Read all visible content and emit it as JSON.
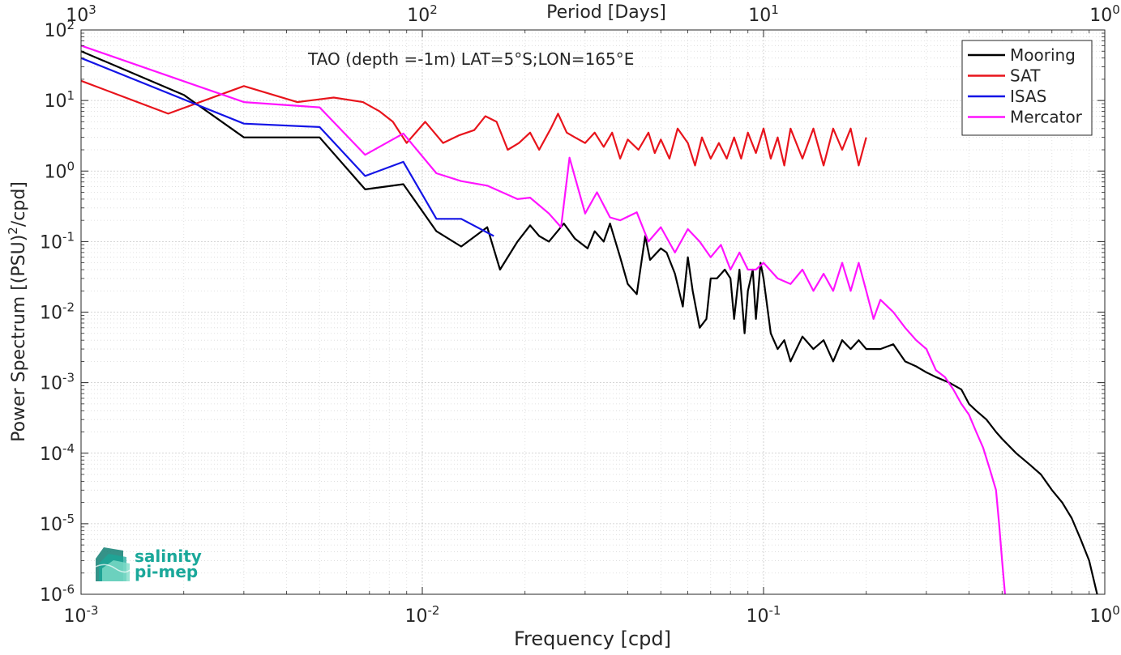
{
  "chart_data": {
    "type": "line",
    "title": "TAO (depth =-1m) LAT=5°S;LON=165°E",
    "xlabel": "Frequency [cpd]",
    "ylabel": "Power Spectrum [(PSU)²/cpd]",
    "ylabel_main": "Power Spectrum [(PSU)",
    "ylabel_sup": "2",
    "ylabel_tail": "/cpd]",
    "top_xlabel": "Period [Days]",
    "xscale": "log",
    "yscale": "log",
    "xlim": [
      0.001,
      1
    ],
    "ylim": [
      1e-06,
      100
    ],
    "grid": true,
    "legend_position": "top-right",
    "x_ticks": [
      {
        "value": 0.001,
        "base": "10",
        "exp": "-3"
      },
      {
        "value": 0.01,
        "base": "10",
        "exp": "-2"
      },
      {
        "value": 0.1,
        "base": "10",
        "exp": "-1"
      },
      {
        "value": 1,
        "base": "10",
        "exp": "0"
      }
    ],
    "top_ticks": [
      {
        "value": 1000,
        "base": "10",
        "exp": "3"
      },
      {
        "value": 100,
        "base": "10",
        "exp": "2"
      },
      {
        "value": 10,
        "base": "10",
        "exp": "1"
      },
      {
        "value": 1,
        "base": "10",
        "exp": "0"
      }
    ],
    "y_ticks": [
      {
        "value": 100,
        "base": "10",
        "exp": "2"
      },
      {
        "value": 10,
        "base": "10",
        "exp": "1"
      },
      {
        "value": 1,
        "base": "10",
        "exp": "0"
      },
      {
        "value": 0.1,
        "base": "10",
        "exp": "-1"
      },
      {
        "value": 0.01,
        "base": "10",
        "exp": "-2"
      },
      {
        "value": 0.001,
        "base": "10",
        "exp": "-3"
      },
      {
        "value": 0.0001,
        "base": "10",
        "exp": "-4"
      },
      {
        "value": 1e-05,
        "base": "10",
        "exp": "-5"
      },
      {
        "value": 1e-06,
        "base": "10",
        "exp": "-6"
      }
    ],
    "series": [
      {
        "name": "Mooring",
        "color": "#000000",
        "x": [
          0.001,
          0.002,
          0.003,
          0.005,
          0.0068,
          0.0088,
          0.011,
          0.013,
          0.0155,
          0.0169,
          0.019,
          0.0207,
          0.022,
          0.0235,
          0.026,
          0.028,
          0.0305,
          0.032,
          0.034,
          0.0355,
          0.038,
          0.04,
          0.0425,
          0.045,
          0.0465,
          0.05,
          0.052,
          0.055,
          0.058,
          0.06,
          0.062,
          0.065,
          0.068,
          0.07,
          0.073,
          0.077,
          0.08,
          0.082,
          0.085,
          0.088,
          0.09,
          0.093,
          0.095,
          0.098,
          0.1,
          0.105,
          0.11,
          0.115,
          0.12,
          0.13,
          0.14,
          0.15,
          0.16,
          0.17,
          0.18,
          0.19,
          0.2,
          0.22,
          0.24,
          0.26,
          0.28,
          0.3,
          0.32,
          0.35,
          0.38,
          0.4,
          0.42,
          0.45,
          0.48,
          0.5,
          0.55,
          0.6,
          0.65,
          0.7,
          0.75,
          0.8,
          0.85,
          0.9,
          0.95
        ],
        "y": [
          50,
          12,
          3,
          3,
          0.55,
          0.65,
          0.14,
          0.085,
          0.16,
          0.04,
          0.1,
          0.17,
          0.12,
          0.1,
          0.18,
          0.11,
          0.08,
          0.14,
          0.1,
          0.18,
          0.06,
          0.025,
          0.018,
          0.12,
          0.055,
          0.08,
          0.07,
          0.035,
          0.012,
          0.06,
          0.02,
          0.006,
          0.008,
          0.03,
          0.03,
          0.04,
          0.03,
          0.008,
          0.04,
          0.005,
          0.02,
          0.04,
          0.008,
          0.05,
          0.03,
          0.005,
          0.003,
          0.004,
          0.002,
          0.0045,
          0.003,
          0.004,
          0.002,
          0.004,
          0.003,
          0.004,
          0.003,
          0.003,
          0.0035,
          0.002,
          0.0017,
          0.0014,
          0.0012,
          0.001,
          0.0008,
          0.0005,
          0.0004,
          0.0003,
          0.0002,
          0.00016,
          0.0001,
          7e-05,
          5e-05,
          3e-05,
          2e-05,
          1.2e-05,
          6e-06,
          3e-06,
          1e-06
        ]
      },
      {
        "name": "SAT",
        "color": "#e8141c",
        "x": [
          0.001,
          0.0018,
          0.003,
          0.0043,
          0.0055,
          0.0067,
          0.0075,
          0.0082,
          0.009,
          0.0102,
          0.0115,
          0.0128,
          0.0142,
          0.0153,
          0.0165,
          0.0178,
          0.0192,
          0.0207,
          0.022,
          0.0238,
          0.025,
          0.0265,
          0.028,
          0.03,
          0.032,
          0.034,
          0.036,
          0.038,
          0.04,
          0.043,
          0.046,
          0.048,
          0.05,
          0.053,
          0.056,
          0.06,
          0.063,
          0.066,
          0.07,
          0.074,
          0.078,
          0.082,
          0.086,
          0.09,
          0.095,
          0.1,
          0.105,
          0.11,
          0.115,
          0.12,
          0.13,
          0.14,
          0.15,
          0.16,
          0.17,
          0.18,
          0.19,
          0.2
        ],
        "y": [
          19,
          6.5,
          16,
          9.5,
          11,
          9.5,
          7,
          5,
          2.5,
          5,
          2.5,
          3.2,
          3.8,
          6,
          5,
          2,
          2.5,
          3.5,
          2,
          4,
          6.5,
          3.5,
          3,
          2.5,
          3.5,
          2.2,
          3.5,
          1.5,
          2.8,
          2,
          3.5,
          1.8,
          2.8,
          1.5,
          4,
          2.5,
          1.2,
          3,
          1.5,
          2.5,
          1.5,
          3,
          1.5,
          3.5,
          1.8,
          4,
          1.5,
          3,
          1.2,
          4,
          1.5,
          4,
          1.2,
          4,
          2,
          4,
          1.2,
          3
        ]
      },
      {
        "name": "ISAS",
        "color": "#1414e6",
        "x": [
          0.001,
          0.003,
          0.005,
          0.0068,
          0.0088,
          0.011,
          0.013,
          0.0162
        ],
        "y": [
          40,
          4.7,
          4.2,
          0.85,
          1.35,
          0.21,
          0.21,
          0.12
        ]
      },
      {
        "name": "Mercator",
        "color": "#ff14ff",
        "x": [
          0.001,
          0.003,
          0.005,
          0.0068,
          0.0088,
          0.011,
          0.013,
          0.0155,
          0.019,
          0.0207,
          0.0235,
          0.0255,
          0.027,
          0.03,
          0.0325,
          0.0355,
          0.038,
          0.0425,
          0.046,
          0.05,
          0.055,
          0.06,
          0.065,
          0.07,
          0.075,
          0.08,
          0.085,
          0.09,
          0.095,
          0.1,
          0.11,
          0.12,
          0.13,
          0.14,
          0.15,
          0.16,
          0.17,
          0.18,
          0.19,
          0.2,
          0.21,
          0.22,
          0.24,
          0.26,
          0.28,
          0.3,
          0.32,
          0.34,
          0.36,
          0.38,
          0.4,
          0.42,
          0.44,
          0.46,
          0.48,
          0.49,
          0.5,
          0.51
        ],
        "y": [
          60,
          9.5,
          8,
          1.7,
          3.4,
          0.93,
          0.72,
          0.62,
          0.4,
          0.42,
          0.25,
          0.16,
          1.55,
          0.25,
          0.5,
          0.22,
          0.2,
          0.26,
          0.1,
          0.16,
          0.07,
          0.15,
          0.1,
          0.06,
          0.09,
          0.04,
          0.07,
          0.04,
          0.04,
          0.05,
          0.03,
          0.025,
          0.04,
          0.02,
          0.035,
          0.02,
          0.05,
          0.02,
          0.05,
          0.02,
          0.008,
          0.015,
          0.01,
          0.006,
          0.004,
          0.003,
          0.0015,
          0.0012,
          0.0008,
          0.0005,
          0.00035,
          0.0002,
          0.00012,
          6e-05,
          3e-05,
          1e-05,
          3e-06,
          1e-06
        ]
      }
    ]
  },
  "logo": {
    "line1": "salinity",
    "line2": "pi-mep",
    "color": "#1aa89a"
  }
}
